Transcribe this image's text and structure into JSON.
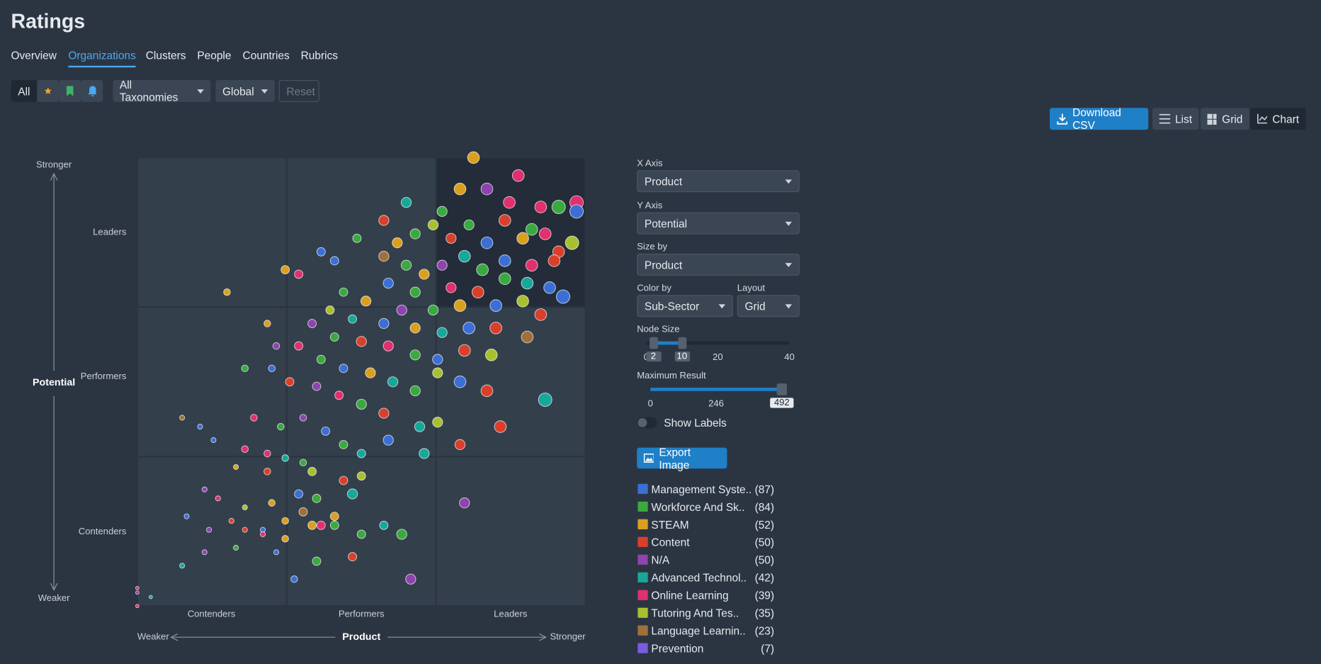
{
  "header": {
    "title": "Ratings",
    "tabs": [
      "Overview",
      "Organizations",
      "Clusters",
      "People",
      "Countries",
      "Rubrics"
    ],
    "active_tab": 1
  },
  "filters": {
    "all": "All",
    "taxonomy": "All Taxonomies",
    "region": "Global",
    "reset": "Reset"
  },
  "toolbar": {
    "download": "Download CSV",
    "list": "List",
    "grid": "Grid",
    "chart": "Chart"
  },
  "chart": {
    "y_axis_title": "Potential",
    "y_high": "Stronger",
    "y_low": "Weaker",
    "y_categories": [
      "Leaders",
      "Performers",
      "Contenders"
    ],
    "x_axis_title": "Product",
    "x_low": "Weaker",
    "x_high": "Stronger",
    "x_categories": [
      "Contenders",
      "Performers",
      "Leaders"
    ],
    "points": [
      [
        75,
        100,
        7,
        2
      ],
      [
        85,
        96,
        7,
        6
      ],
      [
        60,
        90,
        6,
        5
      ],
      [
        72,
        93,
        7,
        2
      ],
      [
        78,
        93,
        7,
        4
      ],
      [
        83,
        90,
        7,
        6
      ],
      [
        90,
        89,
        7,
        6
      ],
      [
        94,
        89,
        8,
        1
      ],
      [
        98,
        90,
        8,
        6
      ],
      [
        98,
        88,
        8,
        0
      ],
      [
        68,
        88,
        6,
        1
      ],
      [
        55,
        86,
        6,
        3
      ],
      [
        66,
        85,
        6,
        7
      ],
      [
        74,
        85,
        6,
        1
      ],
      [
        82,
        86,
        7,
        3
      ],
      [
        88,
        84,
        7,
        1
      ],
      [
        97,
        81,
        8,
        7
      ],
      [
        62,
        83,
        6,
        1
      ],
      [
        58,
        81,
        6,
        2
      ],
      [
        70,
        82,
        6,
        3
      ],
      [
        78,
        81,
        7,
        0
      ],
      [
        86,
        82,
        7,
        2
      ],
      [
        91,
        83,
        7,
        6
      ],
      [
        94,
        79,
        7,
        3
      ],
      [
        49,
        82,
        5,
        1
      ],
      [
        41,
        79,
        5,
        0
      ],
      [
        33,
        75,
        5,
        2
      ],
      [
        36,
        74,
        5,
        6
      ],
      [
        20,
        70,
        4,
        2
      ],
      [
        44,
        77,
        5,
        0
      ],
      [
        55,
        78,
        6,
        8
      ],
      [
        60,
        76,
        6,
        1
      ],
      [
        64,
        74,
        6,
        2
      ],
      [
        68,
        76,
        6,
        4
      ],
      [
        73,
        78,
        7,
        5
      ],
      [
        77,
        75,
        7,
        1
      ],
      [
        82,
        77,
        7,
        0
      ],
      [
        88,
        76,
        7,
        6
      ],
      [
        93,
        77,
        7,
        3
      ],
      [
        56,
        72,
        6,
        0
      ],
      [
        62,
        70,
        6,
        1
      ],
      [
        70,
        71,
        6,
        6
      ],
      [
        76,
        70,
        7,
        3
      ],
      [
        82,
        73,
        7,
        1
      ],
      [
        87,
        72,
        7,
        5
      ],
      [
        92,
        71,
        7,
        0
      ],
      [
        46,
        70,
        5,
        1
      ],
      [
        51,
        68,
        6,
        2
      ],
      [
        59,
        66,
        6,
        4
      ],
      [
        66,
        66,
        6,
        1
      ],
      [
        72,
        67,
        7,
        2
      ],
      [
        80,
        67,
        7,
        0
      ],
      [
        86,
        68,
        7,
        7
      ],
      [
        90,
        65,
        7,
        3
      ],
      [
        95,
        69,
        8,
        0
      ],
      [
        43,
        66,
        5,
        7
      ],
      [
        48,
        64,
        5,
        5
      ],
      [
        55,
        63,
        6,
        0
      ],
      [
        62,
        62,
        6,
        2
      ],
      [
        68,
        61,
        6,
        5
      ],
      [
        74,
        62,
        7,
        0
      ],
      [
        80,
        62,
        7,
        3
      ],
      [
        87,
        60,
        7,
        8
      ],
      [
        29,
        63,
        4,
        2
      ],
      [
        39,
        63,
        5,
        4
      ],
      [
        44,
        60,
        5,
        1
      ],
      [
        50,
        59,
        6,
        3
      ],
      [
        56,
        58,
        6,
        6
      ],
      [
        62,
        56,
        6,
        1
      ],
      [
        67,
        55,
        6,
        0
      ],
      [
        73,
        57,
        7,
        3
      ],
      [
        79,
        56,
        7,
        7
      ],
      [
        31,
        58,
        4,
        4
      ],
      [
        36,
        58,
        5,
        6
      ],
      [
        41,
        55,
        5,
        1
      ],
      [
        46,
        53,
        5,
        0
      ],
      [
        52,
        52,
        6,
        2
      ],
      [
        57,
        50,
        6,
        5
      ],
      [
        62,
        48,
        6,
        1
      ],
      [
        67,
        52,
        6,
        7
      ],
      [
        72,
        50,
        7,
        0
      ],
      [
        78,
        48,
        7,
        3
      ],
      [
        91,
        46,
        8,
        5
      ],
      [
        24,
        53,
        4,
        1
      ],
      [
        30,
        53,
        4,
        0
      ],
      [
        34,
        50,
        5,
        3
      ],
      [
        40,
        49,
        5,
        4
      ],
      [
        45,
        47,
        5,
        6
      ],
      [
        50,
        45,
        6,
        1
      ],
      [
        55,
        43,
        6,
        3
      ],
      [
        63,
        40,
        6,
        5
      ],
      [
        67,
        41,
        6,
        7
      ],
      [
        72,
        36,
        6,
        3
      ],
      [
        81,
        40,
        7,
        3
      ],
      [
        26,
        42,
        4,
        6
      ],
      [
        32,
        40,
        4,
        1
      ],
      [
        37,
        42,
        4,
        4
      ],
      [
        42,
        39,
        5,
        0
      ],
      [
        46,
        36,
        5,
        1
      ],
      [
        50,
        34,
        5,
        5
      ],
      [
        56,
        37,
        6,
        0
      ],
      [
        64,
        34,
        6,
        5
      ],
      [
        10,
        42,
        3,
        8
      ],
      [
        14,
        40,
        3,
        0
      ],
      [
        17,
        37,
        3,
        0
      ],
      [
        24,
        35,
        4,
        6
      ],
      [
        29,
        34,
        4,
        6
      ],
      [
        33,
        33,
        4,
        5
      ],
      [
        37,
        32,
        4,
        1
      ],
      [
        39,
        30,
        5,
        7
      ],
      [
        46,
        28,
        5,
        3
      ],
      [
        50,
        29,
        5,
        7
      ],
      [
        22,
        31,
        3,
        2
      ],
      [
        29,
        30,
        4,
        3
      ],
      [
        36,
        25,
        5,
        0
      ],
      [
        40,
        24,
        5,
        1
      ],
      [
        48,
        25,
        6,
        5
      ],
      [
        15,
        26,
        3,
        4
      ],
      [
        18,
        24,
        3,
        6
      ],
      [
        24,
        22,
        3,
        7
      ],
      [
        30,
        23,
        4,
        2
      ],
      [
        37,
        21,
        5,
        8
      ],
      [
        44,
        20,
        5,
        2
      ],
      [
        24,
        17,
        3,
        3
      ],
      [
        28,
        17,
        3,
        0
      ],
      [
        33,
        19,
        4,
        2
      ],
      [
        41,
        18,
        5,
        6
      ],
      [
        50,
        16,
        5,
        1
      ],
      [
        11,
        20,
        3,
        0
      ],
      [
        16,
        17,
        3,
        4
      ],
      [
        21,
        19,
        3,
        3
      ],
      [
        28,
        16,
        3,
        6
      ],
      [
        33,
        15,
        4,
        2
      ],
      [
        39,
        18,
        5,
        2
      ],
      [
        44,
        18,
        5,
        1
      ],
      [
        22,
        13,
        3,
        1
      ],
      [
        15,
        12,
        3,
        4
      ],
      [
        31,
        12,
        3,
        0
      ],
      [
        40,
        10,
        5,
        1
      ],
      [
        48,
        11,
        5,
        3
      ],
      [
        55,
        18,
        5,
        5
      ],
      [
        10,
        9,
        3,
        5
      ],
      [
        59,
        16,
        6,
        1
      ],
      [
        35,
        6,
        4,
        0
      ],
      [
        73,
        23,
        6,
        4
      ],
      [
        61,
        6,
        6,
        4
      ],
      [
        0,
        4,
        2,
        6
      ],
      [
        3,
        2,
        2,
        5
      ],
      [
        0,
        0,
        2,
        6
      ],
      [
        0,
        3,
        2,
        4
      ]
    ]
  },
  "controls": {
    "x_axis": {
      "label": "X Axis",
      "value": "Product"
    },
    "y_axis": {
      "label": "Y Axis",
      "value": "Potential"
    },
    "size_by": {
      "label": "Size by",
      "value": "Product"
    },
    "color_by": {
      "label": "Color by",
      "value": "Sub-Sector"
    },
    "layout": {
      "label": "Layout",
      "value": "Grid"
    },
    "node_size": {
      "label": "Node Size",
      "range": [
        0,
        40
      ],
      "low": 2,
      "high": 10,
      "ticks": [
        0,
        20,
        40
      ]
    },
    "max_result": {
      "label": "Maximum Result",
      "range": [
        0,
        492
      ],
      "value": 492,
      "ticks": [
        0,
        246
      ]
    },
    "show_labels": "Show Labels",
    "export": "Export Image"
  },
  "legend": [
    {
      "name": "Management Syste..",
      "count": "(87)",
      "color": "#3b6fd6"
    },
    {
      "name": "Workforce And Sk..",
      "count": "(84)",
      "color": "#3aa940"
    },
    {
      "name": "STEAM",
      "count": "(52)",
      "color": "#d9a020"
    },
    {
      "name": "Content",
      "count": "(50)",
      "color": "#d9402b"
    },
    {
      "name": "N/A",
      "count": "(50)",
      "color": "#8e44ad"
    },
    {
      "name": "Advanced Technol..",
      "count": "(42)",
      "color": "#17a89a"
    },
    {
      "name": "Online Learning",
      "count": "(39)",
      "color": "#e0306e"
    },
    {
      "name": "Tutoring And Tes..",
      "count": "(35)",
      "color": "#a8c030"
    },
    {
      "name": "Language Learnin..",
      "count": "(23)",
      "color": "#a0703a"
    },
    {
      "name": "Prevention",
      "count": "(7)",
      "color": "#7b5ce0"
    }
  ]
}
